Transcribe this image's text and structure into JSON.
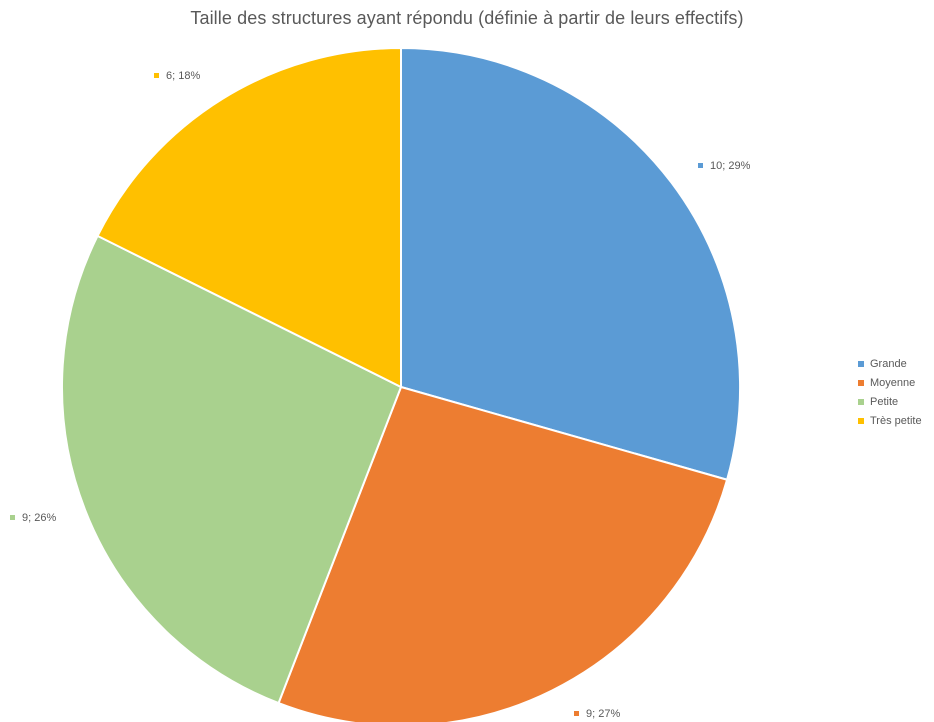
{
  "chart_data": {
    "type": "pie",
    "title": "Taille des structures ayant répondu (définie à partir de leurs effectifs)",
    "categories": [
      "Grande",
      "Moyenne",
      "Petite",
      "Très petite"
    ],
    "values": [
      10,
      9,
      9,
      6
    ],
    "data_labels": [
      "10; 29%",
      "9; 27%",
      "9; 26%",
      "6; 18%"
    ],
    "colors": [
      "#5B9BD5",
      "#ED7D31",
      "#A9D18E",
      "#FFC000"
    ],
    "start_angle_deg": 0,
    "direction": "clockwise",
    "legend_position": "right"
  }
}
